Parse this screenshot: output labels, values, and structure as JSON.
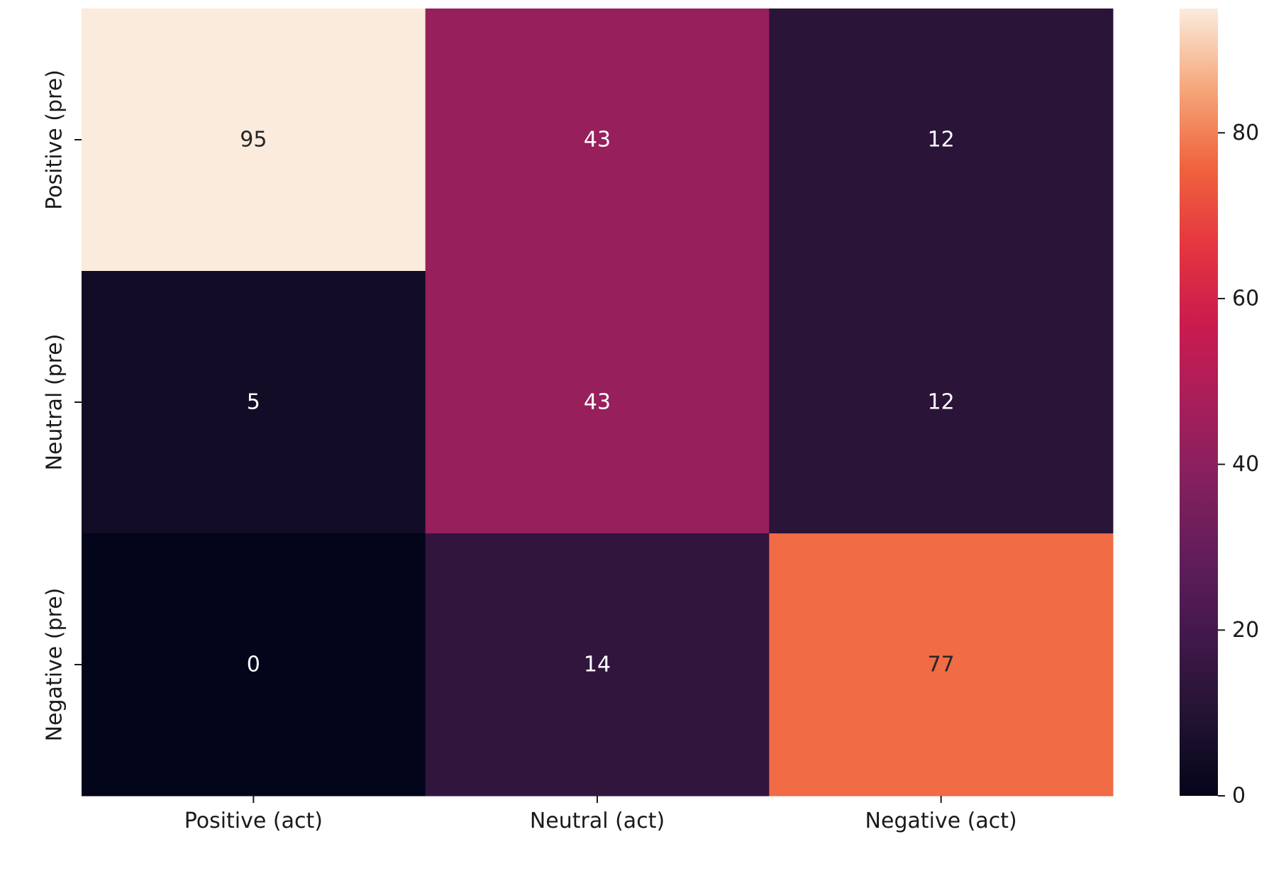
{
  "chart_data": {
    "type": "heatmap",
    "title": "",
    "xlabel": "",
    "ylabel": "",
    "x_categories": [
      "Positive (act)",
      "Neutral (act)",
      "Negative (act)"
    ],
    "y_categories": [
      "Positive (pre)",
      "Neutral (pre)",
      "Negative (pre)"
    ],
    "values": [
      [
        95,
        43,
        12
      ],
      [
        5,
        43,
        12
      ],
      [
        0,
        14,
        77
      ]
    ],
    "colormap": "rocket",
    "vmin": 0,
    "vmax": 95,
    "colorbar": {
      "ticks": [
        0,
        20,
        40,
        60,
        80
      ],
      "tick_labels": [
        "0",
        "20",
        "40",
        "60",
        "80"
      ]
    },
    "cell_label_colors": {
      "on_dark": "#ffffff",
      "on_light": "#262626"
    },
    "grid": false,
    "legend": "none"
  }
}
